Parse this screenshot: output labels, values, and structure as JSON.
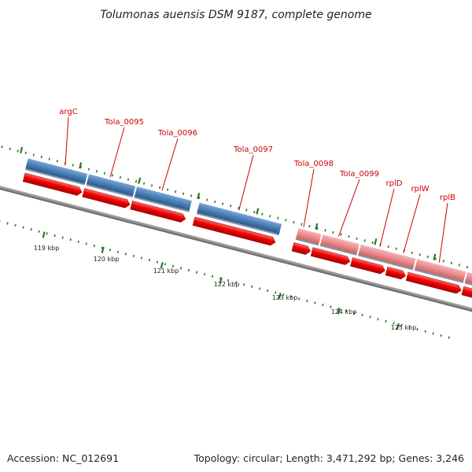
{
  "title": "Tolumonas auensis DSM 9187, complete genome",
  "footer": {
    "accession": "Accession: NC_012691",
    "stats": "Topology: circular; Length: 3,471,292 bp; Genes: 3,246"
  },
  "colors": {
    "backbone": "#8c8c8c",
    "gene_arrow_red": "#ee0000",
    "gene_box_blue": "#4a7fb5",
    "gene_box_pink": "#e88c8c",
    "gene_box_royal": "#1a1aee",
    "gene_label": "#cc0000",
    "tick_green": "#2a7a2a"
  },
  "genes": [
    {
      "name": "argC"
    },
    {
      "name": "Tola_0095"
    },
    {
      "name": "Tola_0096"
    },
    {
      "name": "Tola_0097"
    },
    {
      "name": "Tola_0098"
    },
    {
      "name": "Tola_0099"
    },
    {
      "name": "rplD"
    },
    {
      "name": "rplW"
    },
    {
      "name": "rplB"
    }
  ],
  "ticks": [
    {
      "label": "119 kbp"
    },
    {
      "label": "120 kbp"
    },
    {
      "label": "121 kbp"
    },
    {
      "label": "122 kbp"
    },
    {
      "label": "123 kbp"
    },
    {
      "label": "124 kbp"
    },
    {
      "label": "125 kbp"
    }
  ]
}
